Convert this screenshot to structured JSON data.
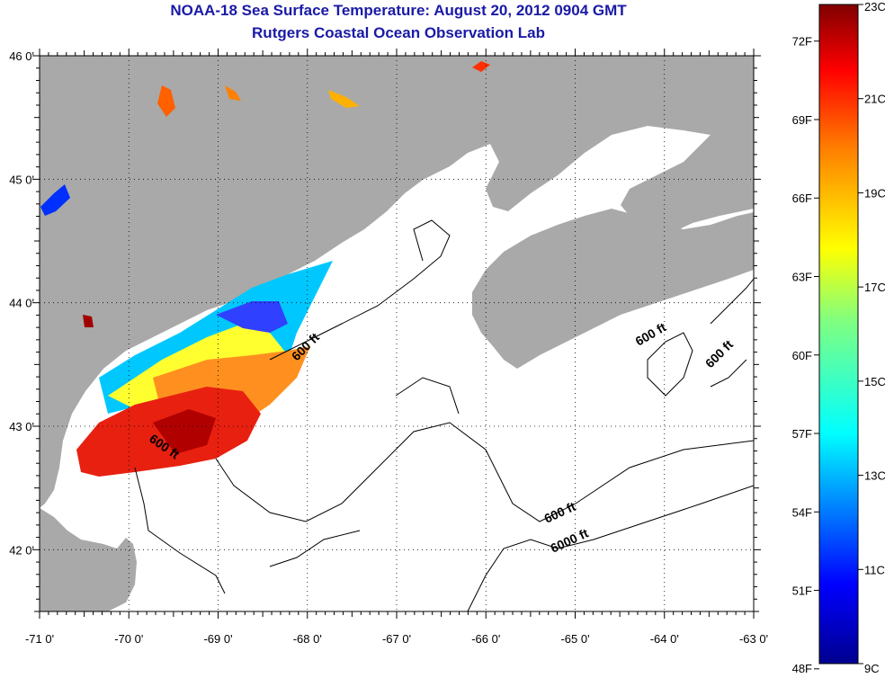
{
  "title": {
    "line1": "NOAA-18 Sea Surface Temperature:  August 20, 2012 0904 GMT",
    "line2": "Rutgers Coastal Ocean Observation Lab"
  },
  "map": {
    "lon_ticks": [
      "-71 0'",
      "-70 0'",
      "-69 0'",
      "-68 0'",
      "-67 0'",
      "-66 0'",
      "-65 0'",
      "-64 0'",
      "-63 0'"
    ],
    "lat_ticks": [
      "46 0'",
      "45 0'",
      "44 0'",
      "43 0'",
      "42 0'"
    ],
    "lon_range": [
      -71,
      -63
    ],
    "lat_range": [
      41.5,
      46
    ],
    "contour_labels": [
      "600 ft",
      "600 ft",
      "600 ft",
      "600 ft",
      "600 ft",
      "6000 ft"
    ],
    "colors": {
      "land": "#a9a9a9",
      "ocean": "#ffffff",
      "grid": "#000000"
    }
  },
  "colorbar": {
    "fahrenheit_labels": [
      "72F",
      "69F",
      "66F",
      "63F",
      "60F",
      "57F",
      "54F",
      "51F",
      "48F"
    ],
    "celsius_labels": [
      "23C",
      "21C",
      "19C",
      "17C",
      "15C",
      "13C",
      "11C",
      "9C"
    ],
    "range_c": [
      9,
      23
    ],
    "colors": [
      "#00008f",
      "#0000ff",
      "#0080ff",
      "#00ffff",
      "#80ff80",
      "#ffff00",
      "#ff8000",
      "#ff0000",
      "#800000"
    ]
  }
}
